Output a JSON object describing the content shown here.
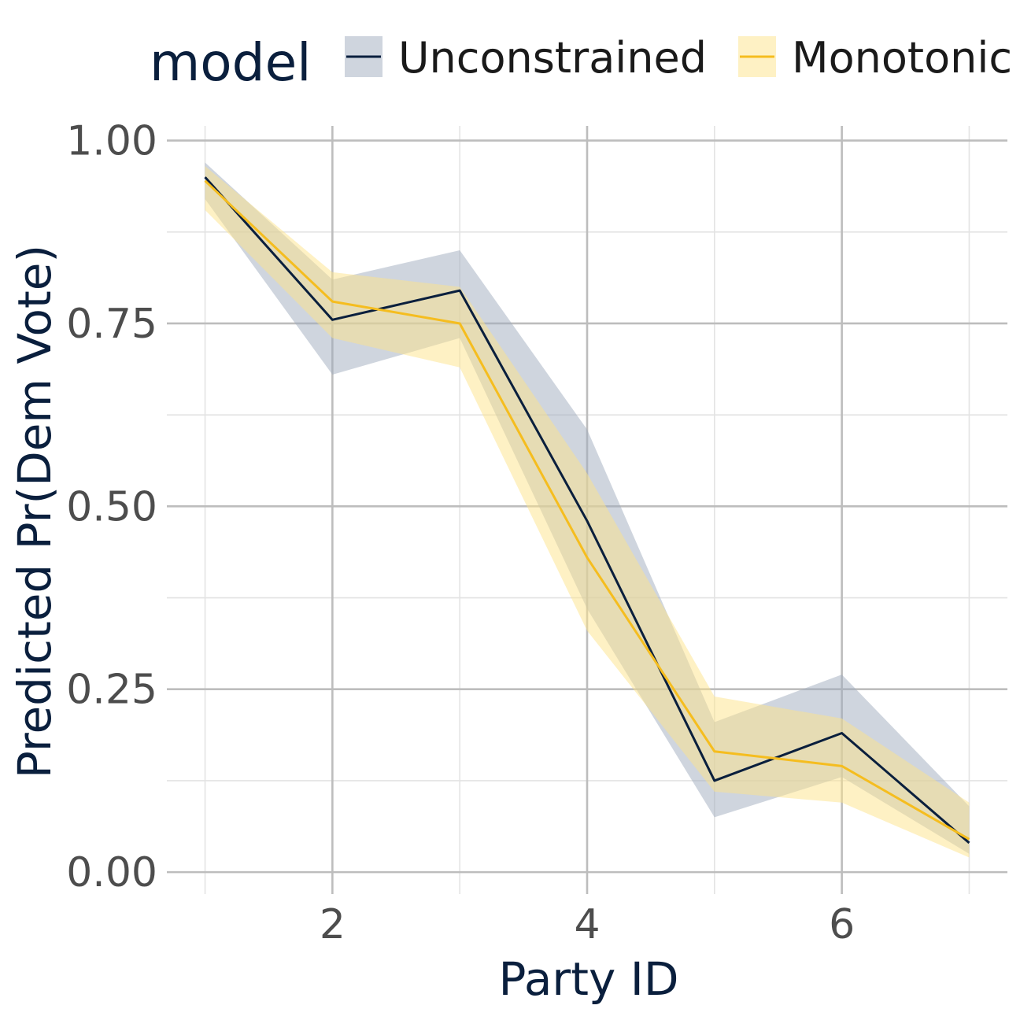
{
  "chart_data": {
    "type": "line",
    "xlabel": "Party ID",
    "ylabel": "Predicted Pr(Dem Vote)",
    "xlim": [
      0.7,
      7.3
    ],
    "ylim": [
      -0.03,
      1.02
    ],
    "x_ticks": [
      2,
      4,
      6
    ],
    "x_tick_labels": [
      "2",
      "4",
      "6"
    ],
    "x_minor_ticks": [
      1,
      3,
      5,
      7
    ],
    "y_ticks": [
      0,
      0.25,
      0.5,
      0.75,
      1
    ],
    "y_tick_labels": [
      "0.00",
      "0.25",
      "0.50",
      "0.75",
      "1.00"
    ],
    "y_minor_ticks": [
      0.125,
      0.375,
      0.625,
      0.875
    ],
    "grid": true,
    "legend": {
      "title": "model",
      "placement": "top"
    },
    "x": [
      1,
      2,
      3,
      4,
      5,
      6,
      7
    ],
    "series": [
      {
        "name": "Unconstrained",
        "color": "#0a1f3d",
        "band_color": "#9fabbe",
        "values": [
          0.95,
          0.755,
          0.795,
          0.48,
          0.125,
          0.19,
          0.04
        ],
        "lower": [
          0.92,
          0.68,
          0.73,
          0.36,
          0.075,
          0.13,
          0.025
        ],
        "upper": [
          0.97,
          0.81,
          0.85,
          0.605,
          0.205,
          0.27,
          0.09
        ]
      },
      {
        "name": "Monotonic",
        "color": "#f5bd1f",
        "band_color": "#fde38a",
        "values": [
          0.945,
          0.78,
          0.75,
          0.43,
          0.165,
          0.145,
          0.045
        ],
        "lower": [
          0.905,
          0.73,
          0.69,
          0.33,
          0.11,
          0.095,
          0.02
        ],
        "upper": [
          0.965,
          0.82,
          0.8,
          0.545,
          0.24,
          0.21,
          0.095
        ]
      }
    ]
  }
}
